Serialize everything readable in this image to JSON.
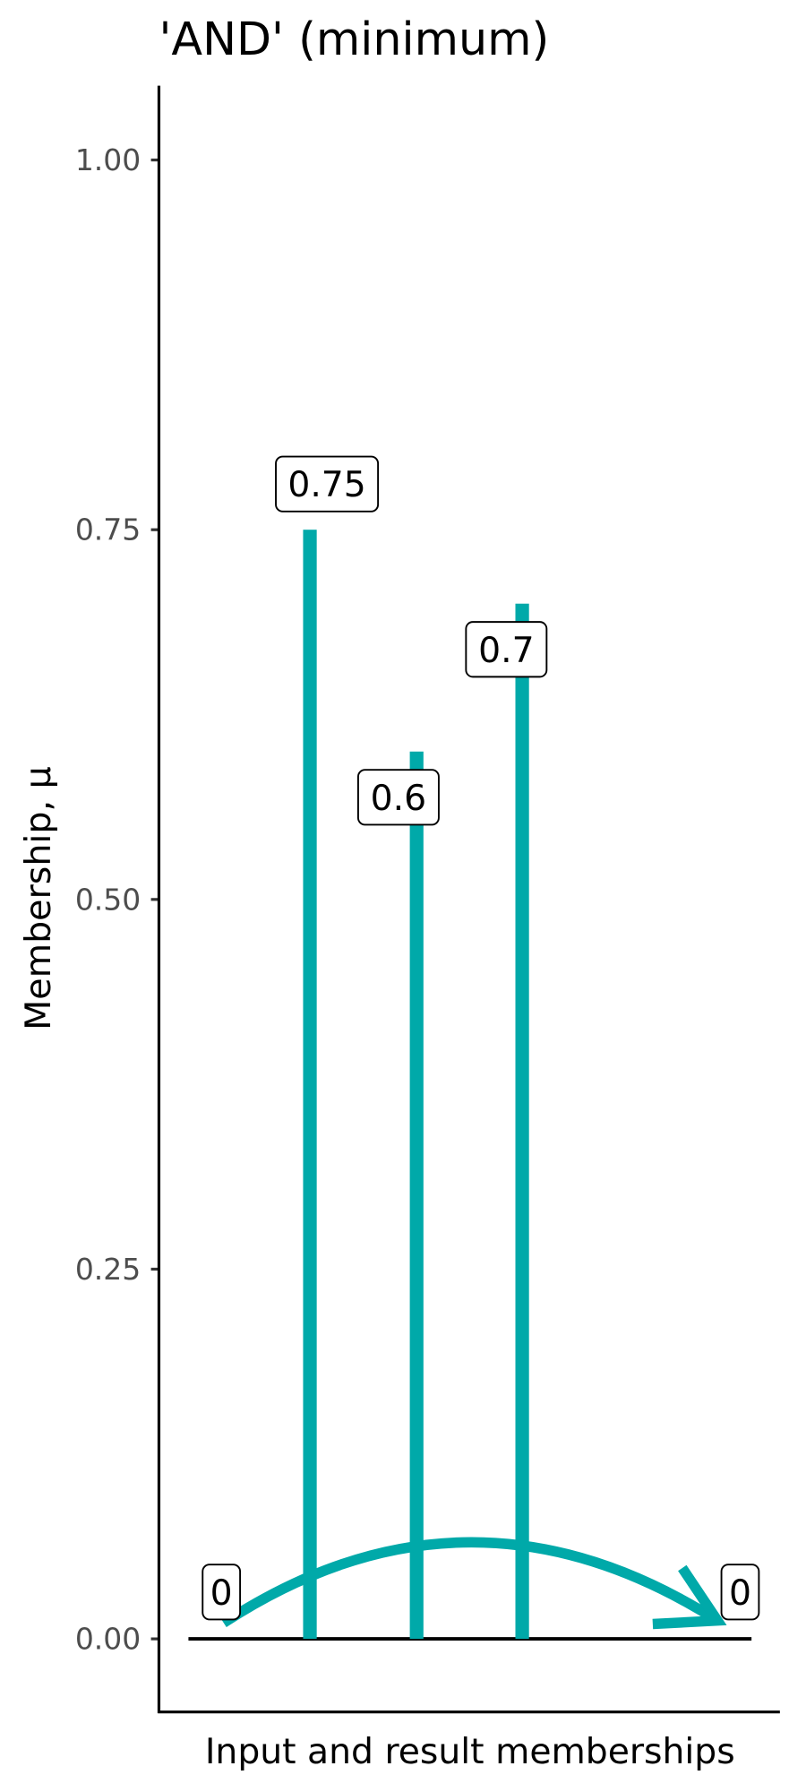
{
  "chart_data": {
    "type": "bar",
    "title": "'AND' (minimum)",
    "xlabel": "Input and result memberships",
    "ylabel": "Membership, μ",
    "ylim": [
      -0.05,
      1.05
    ],
    "yticks": [
      "0.00",
      "0.25",
      "0.50",
      "0.75",
      "1.00"
    ],
    "ytick_values": [
      0,
      0.25,
      0.5,
      0.75,
      1
    ],
    "bars": [
      {
        "value": 0.75,
        "label": "0.75"
      },
      {
        "value": 0.6,
        "label": "0.6"
      },
      {
        "value": 0.7,
        "label": "0.7"
      }
    ],
    "start_label": "0",
    "result_label": "0",
    "result_value": 0,
    "grid": false,
    "colors": {
      "bar": "#00A9A9",
      "arrow": "#00A9A9",
      "axis": "#000000",
      "tick_text": "#4D4D4D"
    }
  }
}
